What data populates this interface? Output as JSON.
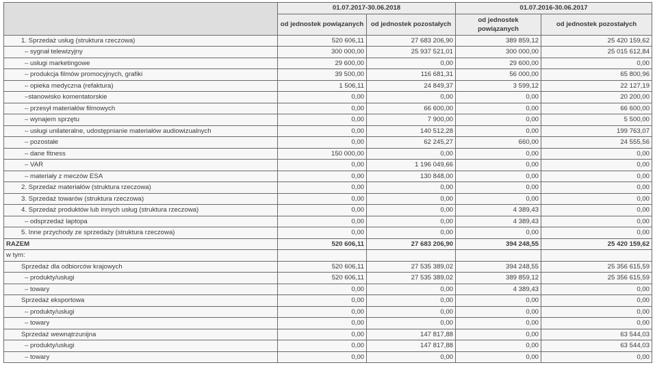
{
  "header": {
    "period_1": "01.07.2017-30.06.2018",
    "period_2": "01.07.2016-30.06.2017",
    "columns": [
      "od jednostek powiązanych",
      "od jednostek pozostałych",
      "od jednostek powiązanych",
      "od jednostek pozostałych"
    ]
  },
  "rows": [
    {
      "label": "1. Sprzedaż usług (struktura rzeczowa)",
      "level": 1,
      "bold": false,
      "values": [
        "520 606,11",
        "27 683 206,90",
        "389 859,12",
        "25 420 159,62"
      ]
    },
    {
      "label": "– sygnał telewizyjny",
      "level": 2,
      "bold": false,
      "values": [
        "300 000,00",
        "25 937 521,01",
        "300 000,00",
        "25 015 612,84"
      ]
    },
    {
      "label": "– usługi marketingowe",
      "level": 2,
      "bold": false,
      "values": [
        "29 600,00",
        "0,00",
        "29 600,00",
        "0,00"
      ]
    },
    {
      "label": "– produkcja filmów promocyjnych, grafiki",
      "level": 2,
      "bold": false,
      "values": [
        "39 500,00",
        "116 681,31",
        "56 000,00",
        "65 800,96"
      ]
    },
    {
      "label": "– opieka medyczna (refaktura)",
      "level": 2,
      "bold": false,
      "values": [
        "1 506,11",
        "24 849,37",
        "3 599,12",
        "22 127,19"
      ]
    },
    {
      "label": "–stanowisko komentatorskie",
      "level": 2,
      "bold": false,
      "values": [
        "0,00",
        "0,00",
        "0,00",
        "20 200,00"
      ]
    },
    {
      "label": "– przesył materiałów filmowych",
      "level": 2,
      "bold": false,
      "values": [
        "0,00",
        "66 600,00",
        "0,00",
        "66 600,00"
      ]
    },
    {
      "label": "– wynajem sprzętu",
      "level": 2,
      "bold": false,
      "values": [
        "0,00",
        "7 900,00",
        "0,00",
        "5 500,00"
      ]
    },
    {
      "label": "– usługi unilateralne, udostępnianie materiałów audiowizualnych",
      "level": 2,
      "bold": false,
      "values": [
        "0,00",
        "140 512,28",
        "0,00",
        "199 763,07"
      ]
    },
    {
      "label": "– pozostałe",
      "level": 2,
      "bold": false,
      "values": [
        "0,00",
        "62 245,27",
        "660,00",
        "24 555,56"
      ]
    },
    {
      "label": "– dane fitness",
      "level": 2,
      "bold": false,
      "values": [
        "150 000,00",
        "0,00",
        "0,00",
        "0,00"
      ]
    },
    {
      "label": "– VAR",
      "level": 2,
      "bold": false,
      "values": [
        "0,00",
        "1 196 049,66",
        "0,00",
        "0,00"
      ]
    },
    {
      "label": "– materiały z meczów ESA",
      "level": 2,
      "bold": false,
      "values": [
        "0,00",
        "130 848,00",
        "0,00",
        "0,00"
      ]
    },
    {
      "label": "2. Sprzedaż materiałów (struktura rzeczowa)",
      "level": 1,
      "bold": false,
      "values": [
        "0,00",
        "0,00",
        "0,00",
        "0,00"
      ]
    },
    {
      "label": "3. Sprzedaż towarów (struktura rzeczowa)",
      "level": 1,
      "bold": false,
      "values": [
        "0,00",
        "0,00",
        "0,00",
        "0,00"
      ]
    },
    {
      "label": "4. Sprzedaż produktów lub innych usług (struktura rzeczowa)",
      "level": 1,
      "bold": false,
      "values": [
        "0,00",
        "0,00",
        "4 389,43",
        "0,00"
      ]
    },
    {
      "label": "– odsprzedaż laptopa",
      "level": 2,
      "bold": false,
      "values": [
        "0,00",
        "0,00",
        "4 389,43",
        "0,00"
      ]
    },
    {
      "label": "5. Inne przychody ze sprzedaży (struktura rzeczowa)",
      "level": 1,
      "bold": false,
      "values": [
        "0,00",
        "0,00",
        "0,00",
        "0,00"
      ]
    },
    {
      "label": "RAZEM",
      "level": 0,
      "bold": true,
      "values": [
        "520 606,11",
        "27 683 206,90",
        "394 248,55",
        "25 420 159,62"
      ]
    },
    {
      "label": "w tym:",
      "level": 0,
      "bold": false,
      "values": [
        "",
        "",
        "",
        ""
      ]
    },
    {
      "label": "Sprzedaż dla odbiorców krajowych",
      "level": 1,
      "bold": false,
      "values": [
        "520 606,11",
        "27 535 389,02",
        "394 248,55",
        "25 356 615,59"
      ]
    },
    {
      "label": "– produkty/usługi",
      "level": 2,
      "bold": false,
      "values": [
        "520 606,11",
        "27 535 389,02",
        "389 859,12",
        "25 356 615,59"
      ]
    },
    {
      "label": "– towary",
      "level": 2,
      "bold": false,
      "values": [
        "0,00",
        "0,00",
        "4 389,43",
        "0,00"
      ]
    },
    {
      "label": "Sprzedaż eksportowa",
      "level": 1,
      "bold": false,
      "values": [
        "0,00",
        "0,00",
        "0,00",
        "0,00"
      ]
    },
    {
      "label": "– produkty/usługi",
      "level": 2,
      "bold": false,
      "values": [
        "0,00",
        "0,00",
        "0,00",
        "0,00"
      ]
    },
    {
      "label": "– towary",
      "level": 2,
      "bold": false,
      "values": [
        "0,00",
        "0,00",
        "0,00",
        "0,00"
      ]
    },
    {
      "label": "Sprzedaż wewnątrzunijna",
      "level": 1,
      "bold": false,
      "values": [
        "0,00",
        "147 817,88",
        "0,00",
        "63 544,03"
      ]
    },
    {
      "label": "– produkty/usługi",
      "level": 2,
      "bold": false,
      "values": [
        "0,00",
        "147 817,88",
        "0,00",
        "63 544,03"
      ]
    },
    {
      "label": "– towary",
      "level": 2,
      "bold": false,
      "values": [
        "0,00",
        "0,00",
        "0,00",
        "0,00"
      ]
    }
  ]
}
